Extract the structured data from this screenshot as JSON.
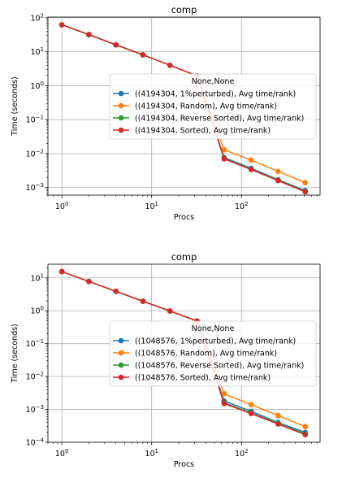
{
  "chart_data": [
    {
      "type": "line",
      "title": "comp",
      "xlabel": "Procs",
      "ylabel": "Time (seconds)",
      "xscale": "log",
      "yscale": "log",
      "xlim": [
        0.7,
        750
      ],
      "ylim": [
        0.0006,
        105
      ],
      "xticks": [
        {
          "v": 1,
          "b": "10",
          "e": "0"
        },
        {
          "v": 10,
          "b": "10",
          "e": "1"
        },
        {
          "v": 100,
          "b": "10",
          "e": "2"
        }
      ],
      "yticks": [
        {
          "v": 0.001,
          "b": "10",
          "e": "−3"
        },
        {
          "v": 0.01,
          "b": "10",
          "e": "−2"
        },
        {
          "v": 0.1,
          "b": "10",
          "e": "−1"
        },
        {
          "v": 1,
          "b": "10",
          "e": "0"
        },
        {
          "v": 10,
          "b": "10",
          "e": "1"
        },
        {
          "v": 100,
          "b": "10",
          "e": "2"
        }
      ],
      "grid": true,
      "legend_title": "None,None",
      "legend_position": "center-right",
      "x": [
        1,
        2,
        4,
        8,
        16,
        32,
        64,
        128,
        256,
        512
      ],
      "series": [
        {
          "name": "((4194304, 1%perturbed), Avg time/rank)",
          "color": "#1f77b4",
          "values": [
            62,
            32,
            16,
            8.1,
            4.0,
            1.95,
            0.0077,
            0.0037,
            0.0017,
            0.00082
          ]
        },
        {
          "name": "((4194304, Random), Avg time/rank)",
          "color": "#ff7f0e",
          "values": [
            62,
            32,
            16,
            8.1,
            4.0,
            1.95,
            0.013,
            0.0065,
            0.003,
            0.0014
          ]
        },
        {
          "name": "((4194304, Reverse Sorted), Avg time/rank)",
          "color": "#2ca02c",
          "values": [
            62,
            32,
            16,
            8.1,
            4.0,
            1.95,
            0.0072,
            0.0035,
            0.00165,
            0.00078
          ]
        },
        {
          "name": "((4194304, Sorted), Avg time/rank)",
          "color": "#d62728",
          "values": [
            62,
            32,
            16,
            8.1,
            4.0,
            1.95,
            0.007,
            0.0034,
            0.0016,
            0.00075
          ]
        }
      ]
    },
    {
      "type": "line",
      "title": "comp",
      "xlabel": "Procs",
      "ylabel": "Time (seconds)",
      "xscale": "log",
      "yscale": "log",
      "xlim": [
        0.7,
        750
      ],
      "ylim": [
        0.0001,
        26
      ],
      "xticks": [
        {
          "v": 1,
          "b": "10",
          "e": "0"
        },
        {
          "v": 10,
          "b": "10",
          "e": "1"
        },
        {
          "v": 100,
          "b": "10",
          "e": "2"
        }
      ],
      "yticks": [
        {
          "v": 0.0001,
          "b": "10",
          "e": "−4"
        },
        {
          "v": 0.001,
          "b": "10",
          "e": "−3"
        },
        {
          "v": 0.01,
          "b": "10",
          "e": "−2"
        },
        {
          "v": 0.1,
          "b": "10",
          "e": "−1"
        },
        {
          "v": 1,
          "b": "10",
          "e": "0"
        },
        {
          "v": 10,
          "b": "10",
          "e": "1"
        }
      ],
      "grid": true,
      "legend_title": "None,None",
      "legend_position": "center-right",
      "x": [
        1,
        2,
        4,
        8,
        16,
        32,
        64,
        128,
        256,
        512
      ],
      "series": [
        {
          "name": "((1048576, 1%perturbed), Avg time/rank)",
          "color": "#1f77b4",
          "values": [
            15.5,
            7.8,
            3.9,
            1.95,
            0.98,
            0.49,
            0.0018,
            0.00088,
            0.0004,
            0.0002
          ]
        },
        {
          "name": "((1048576, Random), Avg time/rank)",
          "color": "#ff7f0e",
          "values": [
            15.5,
            7.8,
            3.9,
            1.95,
            0.98,
            0.49,
            0.003,
            0.0014,
            0.00065,
            0.0003
          ]
        },
        {
          "name": "((1048576, Reverse Sorted), Avg time/rank)",
          "color": "#2ca02c",
          "values": [
            15.5,
            7.8,
            3.9,
            1.95,
            0.98,
            0.49,
            0.0016,
            0.00078,
            0.00037,
            0.00018
          ]
        },
        {
          "name": "((1048576, Sorted), Avg time/rank)",
          "color": "#d62728",
          "values": [
            15.5,
            7.8,
            3.9,
            1.95,
            0.98,
            0.49,
            0.0015,
            0.00075,
            0.00036,
            0.00017
          ]
        }
      ]
    }
  ]
}
